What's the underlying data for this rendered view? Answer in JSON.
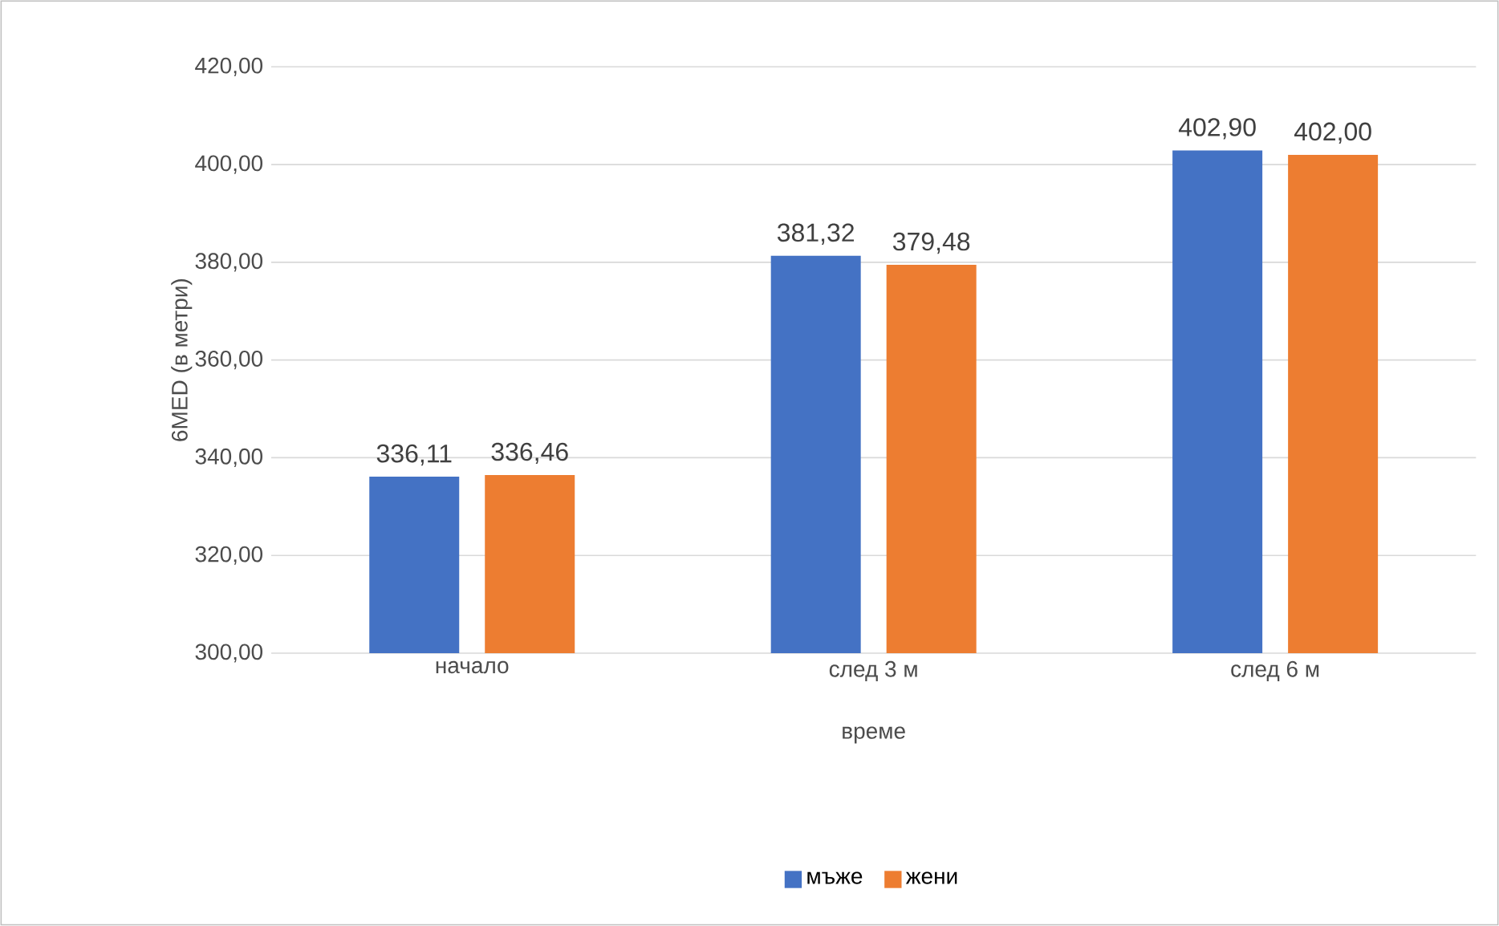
{
  "chart_data": {
    "type": "bar",
    "xlabel": "време",
    "ylabel": "6MED (в метри)",
    "categories": [
      "начало",
      "след 3 м",
      "след 6 м"
    ],
    "series": [
      {
        "name": "мъже",
        "color": "#4472c4",
        "values": [
          336.11,
          381.32,
          402.9
        ],
        "value_labels": [
          "336,11",
          "381,32",
          "402,90"
        ]
      },
      {
        "name": "жени",
        "color": "#ed7d31",
        "values": [
          336.46,
          379.48,
          402.0
        ],
        "value_labels": [
          "336,46",
          "379,48",
          "402,00"
        ]
      }
    ],
    "ylim": [
      300,
      420
    ],
    "yticks": [
      {
        "value": 300,
        "label": "300,00"
      },
      {
        "value": 320,
        "label": "320,00"
      },
      {
        "value": 340,
        "label": "340,00"
      },
      {
        "value": 360,
        "label": "360,00"
      },
      {
        "value": 380,
        "label": "380,00"
      },
      {
        "value": 400,
        "label": "400,00"
      },
      {
        "value": 420,
        "label": "420,00"
      }
    ],
    "grid": "y",
    "legend": "bottom"
  }
}
